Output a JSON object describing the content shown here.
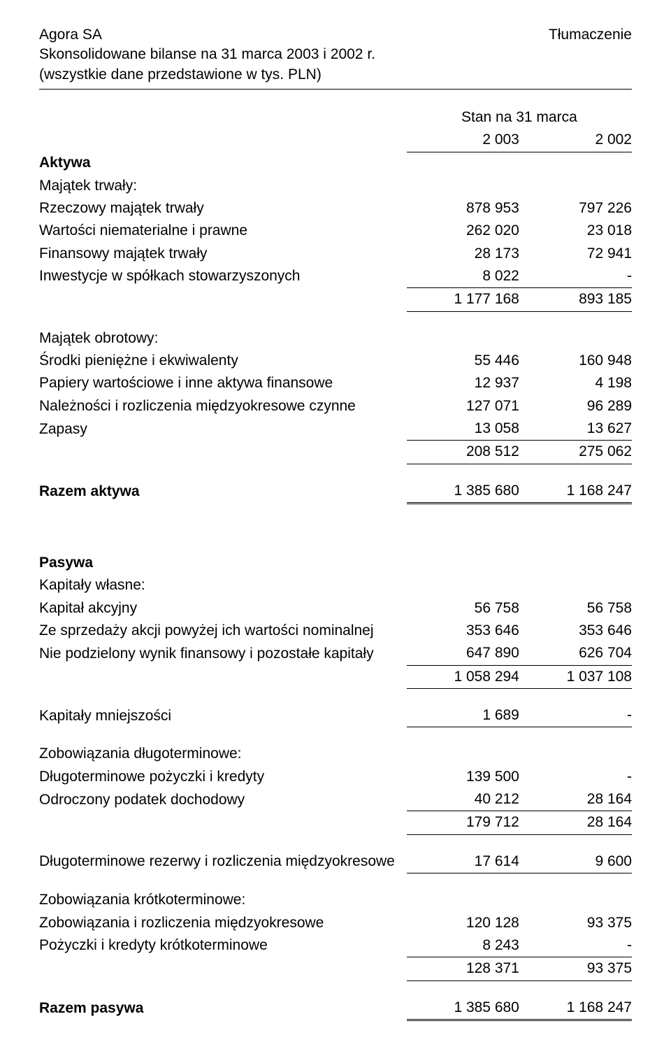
{
  "header": {
    "company": "Agora SA",
    "translation": "Tłumaczenie",
    "title": "Skonsolidowane bilanse na 31 marca 2003 i  2002 r.",
    "subtitle": "(wszystkie dane przedstawione w tys. PLN)"
  },
  "period_header": {
    "caption": "Stan na 31 marca",
    "col1": "2 003",
    "col2": "2 002"
  },
  "aktywa": {
    "title": "Aktywa",
    "fixed_title": "Majątek trwały:",
    "rows": [
      {
        "label": "Rzeczowy majątek trwały",
        "c1": "878 953",
        "c2": "797 226"
      },
      {
        "label": "Wartości niematerialne i prawne",
        "c1": "262 020",
        "c2": "23 018"
      },
      {
        "label": "Finansowy majątek trwały",
        "c1": "28 173",
        "c2": "72 941"
      },
      {
        "label": "Inwestycje w spółkach stowarzyszonych",
        "c1": "8 022",
        "c2": "-"
      }
    ],
    "fixed_subtotal": {
      "c1": "1 177 168",
      "c2": "893 185"
    },
    "current_title": "Majątek obrotowy:",
    "current_rows": [
      {
        "label": "Środki pieniężne i ekwiwalenty",
        "c1": "55 446",
        "c2": "160 948"
      },
      {
        "label": "Papiery wartościowe i inne aktywa finansowe",
        "c1": "12 937",
        "c2": "4 198"
      },
      {
        "label": "Należności i rozliczenia międzyokresowe czynne",
        "c1": "127 071",
        "c2": "96 289"
      },
      {
        "label": "Zapasy",
        "c1": "13 058",
        "c2": "13 627"
      }
    ],
    "current_subtotal": {
      "c1": "208 512",
      "c2": "275 062"
    },
    "total": {
      "label": "Razem aktywa",
      "c1": "1 385 680",
      "c2": "1 168 247"
    }
  },
  "pasywa": {
    "title": "Pasywa",
    "equity_title": "Kapitały własne:",
    "equity_rows": [
      {
        "label": "Kapitał akcyjny",
        "c1": "56 758",
        "c2": "56 758"
      },
      {
        "label": "Ze sprzedaży akcji powyżej ich wartości nominalnej",
        "c1": "353 646",
        "c2": "353 646"
      },
      {
        "label": "Nie podzielony wynik finansowy i pozostałe kapitały",
        "c1": "647 890",
        "c2": "626 704"
      }
    ],
    "equity_subtotal": {
      "c1": "1 058 294",
      "c2": "1 037 108"
    },
    "minority": {
      "label": "Kapitały mniejszości",
      "c1": "1 689",
      "c2": "-"
    },
    "long_title": "Zobowiązania długoterminowe:",
    "long_rows": [
      {
        "label": "Długoterminowe pożyczki i kredyty",
        "c1": "139 500",
        "c2": "-"
      },
      {
        "label": "Odroczony podatek dochodowy",
        "c1": "40 212",
        "c2": "28 164"
      }
    ],
    "long_subtotal": {
      "c1": "179 712",
      "c2": "28 164"
    },
    "long_provisions": {
      "label": "Długoterminowe rezerwy i rozliczenia międzyokresowe",
      "c1": "17 614",
      "c2": "9 600"
    },
    "short_title": "Zobowiązania krótkoterminowe:",
    "short_rows": [
      {
        "label": "Zobowiązania i rozliczenia międzyokresowe",
        "c1": "120 128",
        "c2": "93 375"
      },
      {
        "label": "Pożyczki i kredyty krótkoterminowe",
        "c1": "8 243",
        "c2": "-"
      }
    ],
    "short_subtotal": {
      "c1": "128 371",
      "c2": "93 375"
    },
    "total": {
      "label": "Razem pasywa",
      "c1": "1 385 680",
      "c2": "1 168 247"
    }
  }
}
